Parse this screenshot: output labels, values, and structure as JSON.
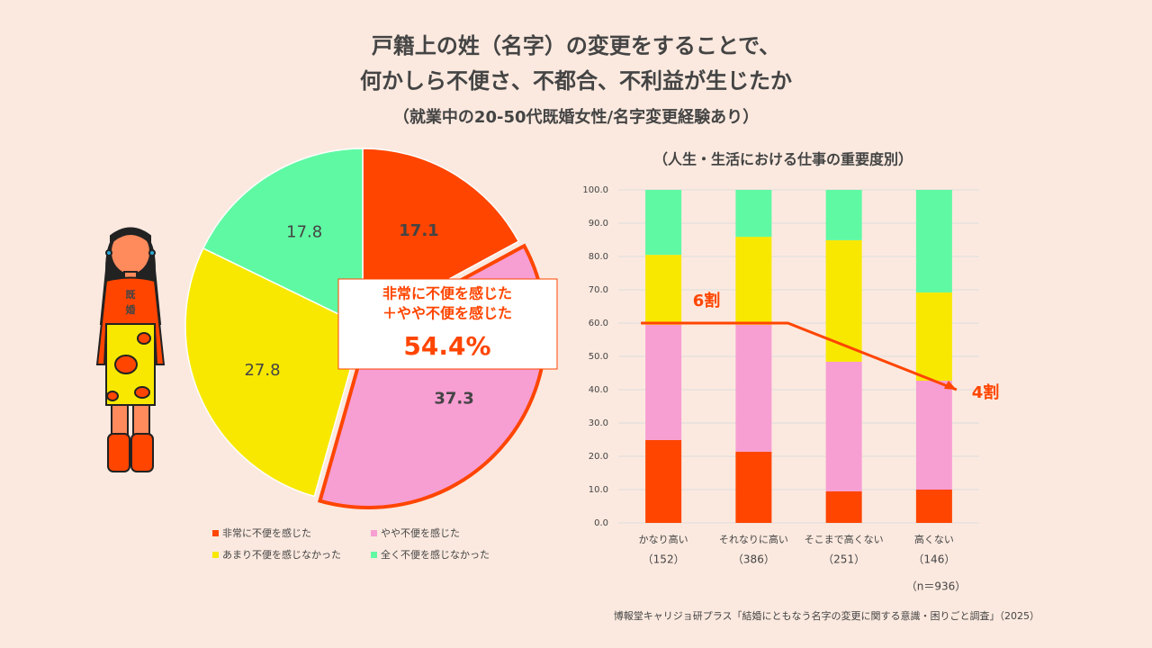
{
  "header": {
    "title": [
      "戸籍上の姓（名字）の変更をすることで、",
      "何かしら不便さ、不都合、不利益が生じたか"
    ],
    "subtitle": "（就業中の20-50代既婚女性/名字変更経験あり）"
  },
  "illustration": {
    "label": [
      "既",
      "婚"
    ]
  },
  "chart_data": [
    {
      "type": "pie",
      "categories": [
        "非常に不便を感じた",
        "やや不便を感じた",
        "あまり不便を感じなかった",
        "全く不便を感じなかった"
      ],
      "values": [
        17.1,
        37.3,
        27.8,
        17.8
      ],
      "colors": [
        "#ff4500",
        "#f79ed3",
        "#f8e800",
        "#5ff9a3"
      ],
      "callout": {
        "lines": [
          "非常に不便を感じた",
          "＋やや不便を感じた"
        ],
        "label": "54.4%"
      }
    },
    {
      "type": "stacked_bar",
      "subtitle": "（人生・生活における仕事の重要度別）",
      "categories": [
        "かなり高い",
        "それなりに高い",
        "そこまで高くない",
        "高くない"
      ],
      "category_notes": [
        "（152）",
        "（386）",
        "（251）",
        "（146）"
      ],
      "series": [
        {
          "color": "#ff4500",
          "values": [
            24.9,
            21.4,
            9.5,
            10.0
          ]
        },
        {
          "color": "#f79ed3",
          "values": [
            34.6,
            38.1,
            38.9,
            32.7
          ]
        },
        {
          "color": "#f8e800",
          "values": [
            21.0,
            26.4,
            36.5,
            26.5
          ]
        },
        {
          "color": "#5ff9a3",
          "values": [
            19.5,
            14.1,
            15.1,
            30.8
          ]
        }
      ],
      "ylim": [
        0,
        100
      ],
      "yticks": [
        {
          "value": 0,
          "label": "0.0"
        },
        {
          "value": 10,
          "label": "10.0"
        },
        {
          "value": 20,
          "label": "20.0"
        },
        {
          "value": 30,
          "label": "30.0"
        },
        {
          "value": 40,
          "label": "40.0"
        },
        {
          "value": 50,
          "label": "50.0"
        },
        {
          "value": 60,
          "label": "60.0"
        },
        {
          "value": 70,
          "label": "70.0"
        },
        {
          "value": 80,
          "label": "80.0"
        },
        {
          "value": 90,
          "label": "90.0"
        },
        {
          "value": 100,
          "label": "100.0"
        }
      ],
      "grid": true,
      "annotations": [
        {
          "text": "6割",
          "y": 60
        },
        {
          "text": "4割",
          "y": 40
        }
      ],
      "note": "（n＝936）"
    }
  ],
  "source": "博報堂キャリジョ研プラス「結婚にともなう名字の変更に関する意識・困りごと調査」（2025）"
}
